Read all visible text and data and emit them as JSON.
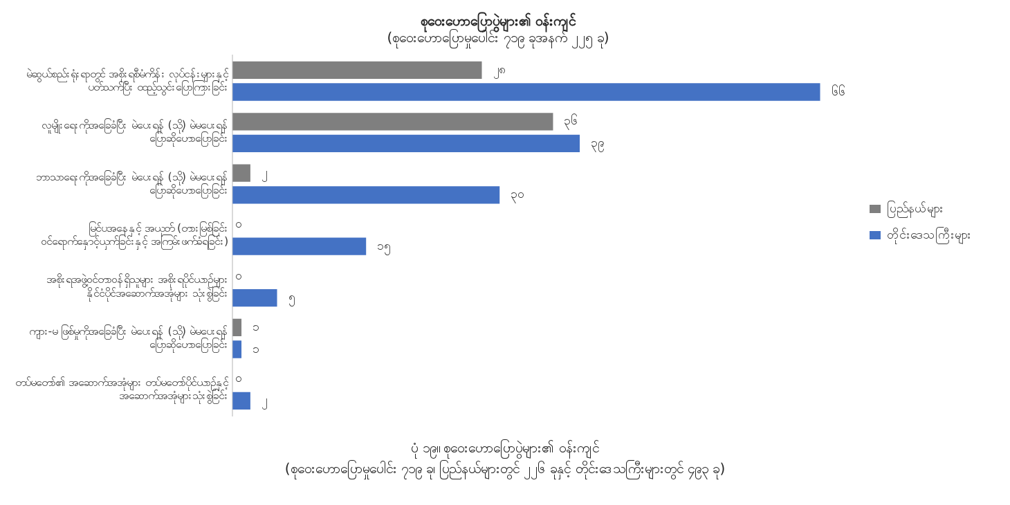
{
  "chart_data": {
    "type": "bar",
    "orientation": "horizontal",
    "title": "စုဝေးဟောပြောပွဲများ၏ ဝန်းကျင်",
    "subtitle": "(စုဝေးဟောပြောမှုပေါင်း ၇၁၉ ခုအနက် ၂၂၅ ခု)",
    "categories": [
      "မဲဆွယ်စည်းရုံးရာတွင် အစိုးရစီမံကိန်း လုပ်ငန်းများနှင့် ပတ်သက်ပြီး ထည့်သွင်းပြောကြားခြင်း",
      "လူမျိုးရေးကိုအခြေခံပြီး မဲပေးရန် (သို့) မဲမပေးရန် ပြောဆိုဟောပြောခြင်း",
      "ဘာသာရေးကိုအခြေခံပြီး မဲပေးရန် (သို့) မဲမပေးရန် ပြောဆိုဟောပြောခြင်း",
      "မြင်ပအနေနှင့် အယုတ် (တားမြစ်ခြင်း ဝင်ရောက်နှောင့်ယှက်ခြင်းနှင့် အကြမ်းဖက်ခံရခြင်း)",
      "အစိုးရအဖွဲ့ဝင်တာဝန်ရှိသူများ အစိုးရပိုင်ယာဉ်များ နိုင်ငံပိုင်အဆောက်အအုံများ သုံးစွဲခြင်း",
      "ကျား-မ ဖြစ်မှုကိုအခြေခံပြီး မဲပေးရန် (သို့) မဲမပေးရန် ပြောဆိုဟောပြောခြင်း",
      "တပ်မတော်၏ အဆောက်အအုံများ တပ်မတော်ပိုင်ယာဉ်နှင့် အဆောက်အအုံများသုံးစွဲခြင်း"
    ],
    "series": [
      {
        "name": "ပြည်နယ်များ",
        "color": "#7f7f7f",
        "values": [
          28,
          36,
          2,
          0,
          0,
          1,
          0
        ],
        "value_labels": [
          "၂၈",
          "၃၆",
          "၂",
          "၀",
          "၀",
          "၁",
          "၀"
        ]
      },
      {
        "name": "တိုင်းဒေသကြီးများ",
        "color": "#4472c4",
        "values": [
          66,
          39,
          30,
          15,
          5,
          1,
          2
        ],
        "value_labels": [
          "၆၆",
          "၃၉",
          "၃၀",
          "၁၅",
          "၅",
          "၁",
          "၂"
        ]
      }
    ],
    "grid": false,
    "legend": "right",
    "annotations": [
      "ပုံ ၁၉။ စုဝေးဟောပြောပွဲများ၏ ဝန်းကျင်",
      "(စုဝေးဟောပြောမှုပေါင်း ၇၁၉ ခု၊ ပြည်နယ်များတွင် ၂၂၆ ခုနှင့် တိုင်းဒေသကြီးများတွင် ၄၉၃ ခု)"
    ]
  }
}
